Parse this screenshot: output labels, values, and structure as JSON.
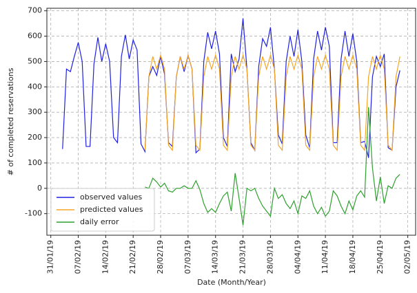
{
  "chart_data": {
    "type": "line",
    "xlabel": "Date (Month/Year)",
    "ylabel": "# of completed reservations",
    "x": [
      "2019-02-03",
      "2019-02-04",
      "2019-02-05",
      "2019-02-06",
      "2019-02-07",
      "2019-02-08",
      "2019-02-09",
      "2019-02-10",
      "2019-02-11",
      "2019-02-12",
      "2019-02-13",
      "2019-02-14",
      "2019-02-15",
      "2019-02-16",
      "2019-02-17",
      "2019-02-18",
      "2019-02-19",
      "2019-02-20",
      "2019-02-21",
      "2019-02-22",
      "2019-02-23",
      "2019-02-24",
      "2019-02-25",
      "2019-02-26",
      "2019-02-27",
      "2019-02-28",
      "2019-03-01",
      "2019-03-02",
      "2019-03-03",
      "2019-03-04",
      "2019-03-05",
      "2019-03-06",
      "2019-03-07",
      "2019-03-08",
      "2019-03-09",
      "2019-03-10",
      "2019-03-11",
      "2019-03-12",
      "2019-03-13",
      "2019-03-14",
      "2019-03-15",
      "2019-03-16",
      "2019-03-17",
      "2019-03-18",
      "2019-03-19",
      "2019-03-20",
      "2019-03-21",
      "2019-03-22",
      "2019-03-23",
      "2019-03-24",
      "2019-03-25",
      "2019-03-26",
      "2019-03-27",
      "2019-03-28",
      "2019-03-29",
      "2019-03-30",
      "2019-03-31",
      "2019-04-01",
      "2019-04-02",
      "2019-04-03",
      "2019-04-04",
      "2019-04-05",
      "2019-04-06",
      "2019-04-07",
      "2019-04-08",
      "2019-04-09",
      "2019-04-10",
      "2019-04-11",
      "2019-04-12",
      "2019-04-13",
      "2019-04-14",
      "2019-04-15",
      "2019-04-16",
      "2019-04-17",
      "2019-04-18",
      "2019-04-19",
      "2019-04-20",
      "2019-04-21",
      "2019-04-22",
      "2019-04-23",
      "2019-04-24",
      "2019-04-25",
      "2019-04-26",
      "2019-04-27",
      "2019-04-28",
      "2019-04-29",
      "2019-04-30"
    ],
    "series": [
      {
        "name": "observed values",
        "color": "#1f1fe0",
        "values": [
          155,
          470,
          460,
          520,
          575,
          500,
          165,
          165,
          490,
          595,
          500,
          570,
          500,
          200,
          180,
          520,
          605,
          510,
          585,
          545,
          175,
          145,
          440,
          480,
          445,
          520,
          450,
          180,
          165,
          440,
          520,
          460,
          525,
          470,
          140,
          155,
          500,
          615,
          550,
          620,
          530,
          200,
          165,
          530,
          460,
          510,
          670,
          470,
          180,
          150,
          480,
          590,
          560,
          635,
          470,
          210,
          175,
          500,
          600,
          520,
          625,
          500,
          210,
          160,
          510,
          620,
          545,
          635,
          560,
          180,
          180,
          510,
          620,
          520,
          610,
          500,
          180,
          185,
          120,
          440,
          520,
          480,
          530,
          160,
          150,
          400,
          465
        ]
      },
      {
        "name": "predicted values",
        "color": "#f5a623",
        "values": [
          null,
          null,
          null,
          null,
          null,
          null,
          null,
          null,
          null,
          null,
          null,
          null,
          null,
          null,
          null,
          null,
          null,
          null,
          null,
          null,
          null,
          150,
          440,
          520,
          470,
          525,
          470,
          170,
          150,
          440,
          520,
          470,
          525,
          470,
          170,
          150,
          440,
          520,
          470,
          525,
          470,
          170,
          150,
          440,
          520,
          470,
          525,
          470,
          170,
          150,
          440,
          520,
          470,
          525,
          470,
          170,
          150,
          440,
          520,
          470,
          525,
          470,
          170,
          150,
          440,
          520,
          470,
          525,
          470,
          170,
          150,
          440,
          520,
          470,
          525,
          470,
          170,
          150,
          440,
          520,
          470,
          525,
          470,
          170,
          150,
          440,
          520
        ]
      },
      {
        "name": "daily error",
        "color": "#2ca02c",
        "values": [
          null,
          null,
          null,
          null,
          null,
          null,
          null,
          null,
          null,
          null,
          null,
          null,
          null,
          null,
          null,
          null,
          null,
          null,
          null,
          null,
          null,
          5,
          0,
          40,
          25,
          5,
          20,
          -10,
          -15,
          0,
          0,
          10,
          0,
          0,
          30,
          -5,
          -60,
          -95,
          -80,
          -95,
          -60,
          -30,
          -15,
          -90,
          60,
          -40,
          -145,
          0,
          -10,
          0,
          -40,
          -70,
          -90,
          -110,
          0,
          -40,
          -25,
          -60,
          -80,
          -50,
          -100,
          -30,
          -40,
          -10,
          -70,
          -100,
          -75,
          -110,
          -90,
          -10,
          -30,
          -70,
          -100,
          -50,
          -85,
          -30,
          -10,
          -35,
          320,
          80,
          -50,
          45,
          -60,
          10,
          0,
          40,
          55
        ]
      }
    ],
    "xlim": [
      "2019-01-30",
      "2019-05-04"
    ],
    "xticks": [
      {
        "value": "2019-01-31",
        "label": "31/01/19"
      },
      {
        "value": "2019-02-07",
        "label": "07/02/19"
      },
      {
        "value": "2019-02-14",
        "label": "14/02/19"
      },
      {
        "value": "2019-02-21",
        "label": "21/02/19"
      },
      {
        "value": "2019-02-28",
        "label": "28/02/19"
      },
      {
        "value": "2019-03-07",
        "label": "07/03/19"
      },
      {
        "value": "2019-03-14",
        "label": "14/03/19"
      },
      {
        "value": "2019-03-21",
        "label": "21/03/19"
      },
      {
        "value": "2019-03-28",
        "label": "28/03/19"
      },
      {
        "value": "2019-04-04",
        "label": "04/04/19"
      },
      {
        "value": "2019-04-11",
        "label": "11/04/19"
      },
      {
        "value": "2019-04-18",
        "label": "18/04/19"
      },
      {
        "value": "2019-04-25",
        "label": "25/04/19"
      },
      {
        "value": "2019-05-02",
        "label": "02/05/19"
      }
    ],
    "ylim": [
      -185,
      710
    ],
    "yticks": [
      -100,
      0,
      100,
      200,
      300,
      400,
      500,
      600,
      700
    ],
    "grid": true,
    "legend": "lower left"
  }
}
